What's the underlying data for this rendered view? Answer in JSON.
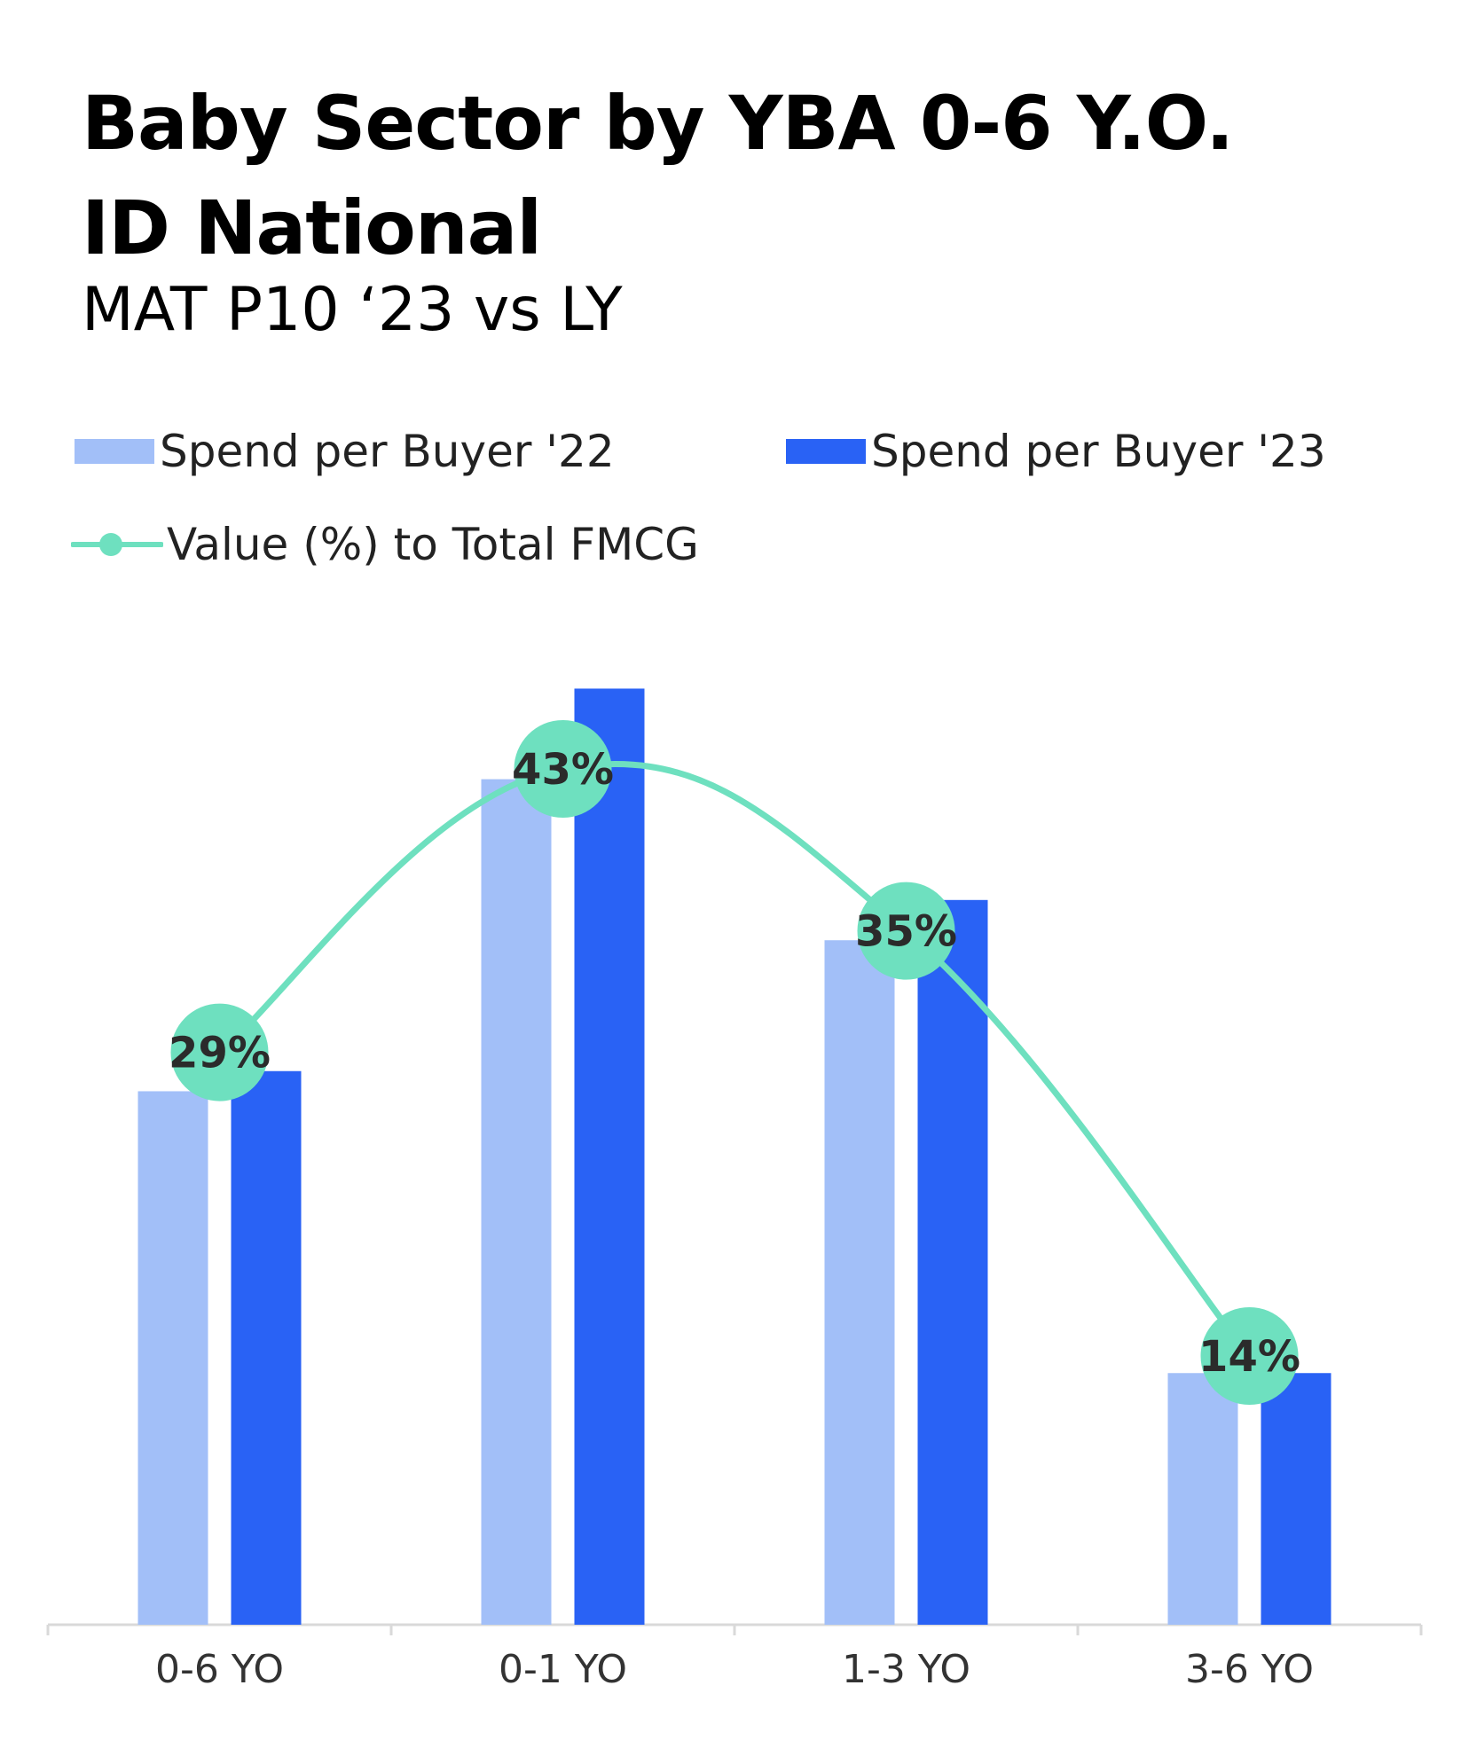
{
  "title_line1": "Baby Sector by YBA 0-6 Y.O.",
  "title_line2": "ID National",
  "subtitle": "MAT P10 ‘23 vs LY",
  "legend": {
    "series1": "Spend per Buyer '22",
    "series2": "Spend per Buyer '23",
    "series3": "Value (%) to Total FMCG"
  },
  "colors": {
    "spend_22": "#a2bff8",
    "spend_23": "#2962f5",
    "value_line": "#6ee0bf",
    "axis": "#d9d9d9"
  },
  "chart_data": {
    "type": "bar",
    "categories": [
      "0-6 YO",
      "0-1 YO",
      "1-3 YO",
      "3-6 YO"
    ],
    "series": [
      {
        "name": "Spend per Buyer '22",
        "kind": "bar",
        "values": [
          53,
          84,
          68,
          25
        ]
      },
      {
        "name": "Spend per Buyer '23",
        "kind": "bar",
        "values": [
          55,
          93,
          72,
          25
        ]
      },
      {
        "name": "Value (%) to Total FMCG",
        "kind": "line",
        "values": [
          29,
          43,
          35,
          14
        ],
        "labels": [
          "29%",
          "43%",
          "35%",
          "14%"
        ]
      }
    ],
    "legend_position": "top",
    "grid": false
  }
}
